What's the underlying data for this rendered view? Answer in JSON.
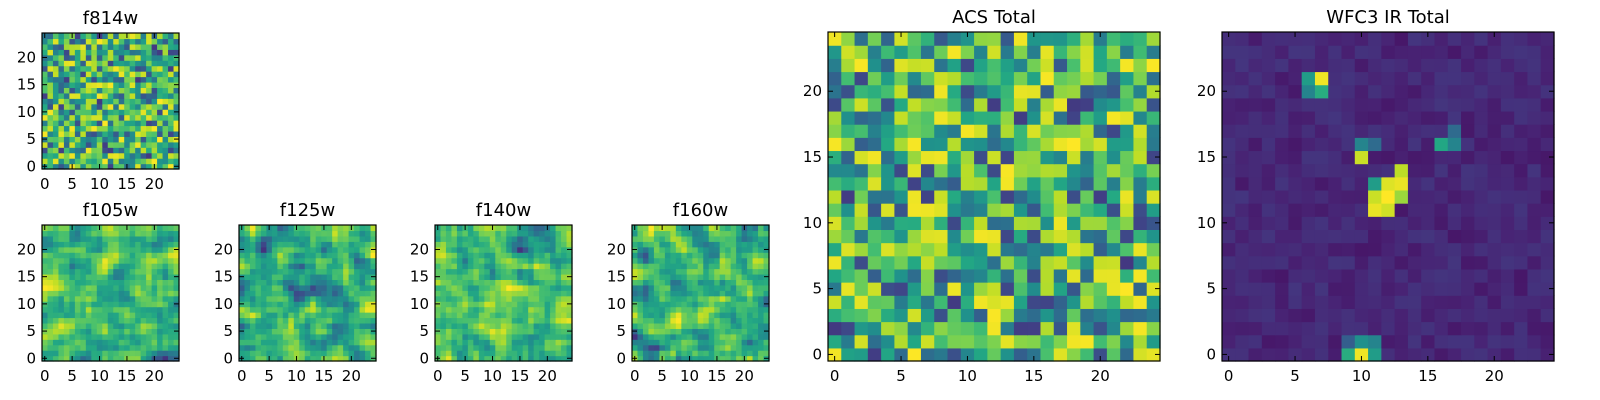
{
  "figure": {
    "background": "#ffffff",
    "colormap": "viridis"
  },
  "chart_data": [
    {
      "id": "f814w",
      "type": "heatmap",
      "title": "f814w",
      "xlabel": "",
      "ylabel": "",
      "grid_size": [
        25,
        25
      ],
      "xlim": [
        -0.5,
        24.5
      ],
      "ylim": [
        -0.5,
        24.5
      ],
      "xticks": [
        0,
        5,
        10,
        15,
        20
      ],
      "yticks": [
        0,
        5,
        10,
        15,
        20
      ],
      "value_range": [
        0,
        1
      ],
      "seed": 11,
      "smooth": 0,
      "peaks": [],
      "peak_background": 0,
      "note": "noise-like field; per-pixel values not legible"
    },
    {
      "id": "f105w",
      "type": "heatmap",
      "title": "f105w",
      "xlabel": "",
      "ylabel": "",
      "grid_size": [
        25,
        25
      ],
      "xlim": [
        -0.5,
        24.5
      ],
      "ylim": [
        -0.5,
        24.5
      ],
      "xticks": [
        0,
        5,
        10,
        15,
        20
      ],
      "yticks": [
        0,
        5,
        10,
        15,
        20
      ],
      "value_range": [
        0,
        1
      ],
      "seed": 23,
      "smooth": 1,
      "peaks": [],
      "peak_background": 0,
      "note": "smoothed noise field; per-pixel values not legible"
    },
    {
      "id": "f125w",
      "type": "heatmap",
      "title": "f125w",
      "xlabel": "",
      "ylabel": "",
      "grid_size": [
        25,
        25
      ],
      "xlim": [
        -0.5,
        24.5
      ],
      "ylim": [
        -0.5,
        24.5
      ],
      "xticks": [
        0,
        5,
        10,
        15,
        20
      ],
      "yticks": [
        0,
        5,
        10,
        15,
        20
      ],
      "value_range": [
        0,
        1
      ],
      "seed": 37,
      "smooth": 1,
      "peaks": [],
      "peak_background": 0,
      "note": "smoothed noise field; per-pixel values not legible"
    },
    {
      "id": "f140w",
      "type": "heatmap",
      "title": "f140w",
      "xlabel": "",
      "ylabel": "",
      "grid_size": [
        25,
        25
      ],
      "xlim": [
        -0.5,
        24.5
      ],
      "ylim": [
        -0.5,
        24.5
      ],
      "xticks": [
        0,
        5,
        10,
        15,
        20
      ],
      "yticks": [
        0,
        5,
        10,
        15,
        20
      ],
      "value_range": [
        0,
        1
      ],
      "seed": 41,
      "smooth": 1,
      "peaks": [],
      "peak_background": 0,
      "note": "smoothed noise field; per-pixel values not legible"
    },
    {
      "id": "f160w",
      "type": "heatmap",
      "title": "f160w",
      "xlabel": "",
      "ylabel": "",
      "grid_size": [
        25,
        25
      ],
      "xlim": [
        -0.5,
        24.5
      ],
      "ylim": [
        -0.5,
        24.5
      ],
      "xticks": [
        0,
        5,
        10,
        15,
        20
      ],
      "yticks": [
        0,
        5,
        10,
        15,
        20
      ],
      "value_range": [
        0,
        1
      ],
      "seed": 53,
      "smooth": 1,
      "peaks": [],
      "peak_background": 0,
      "note": "smoothed noise field; per-pixel values not legible"
    },
    {
      "id": "acs_total",
      "type": "heatmap",
      "title": "ACS Total",
      "xlabel": "",
      "ylabel": "",
      "grid_size": [
        25,
        25
      ],
      "xlim": [
        -0.5,
        24.5
      ],
      "ylim": [
        -0.5,
        24.5
      ],
      "xticks": [
        0,
        5,
        10,
        15,
        20
      ],
      "yticks": [
        0,
        5,
        10,
        15,
        20
      ],
      "value_range": [
        0,
        1
      ],
      "seed": 67,
      "smooth": 0,
      "peaks": [],
      "peak_background": 0,
      "note": "noise-like field; per-pixel values not legible"
    },
    {
      "id": "wfc3_ir_total",
      "type": "heatmap",
      "title": "WFC3 IR Total",
      "xlabel": "",
      "ylabel": "",
      "grid_size": [
        25,
        25
      ],
      "xlim": [
        -0.5,
        24.5
      ],
      "ylim": [
        -0.5,
        24.5
      ],
      "xticks": [
        0,
        5,
        10,
        15,
        20
      ],
      "yticks": [
        0,
        5,
        10,
        15,
        20
      ],
      "value_range": [
        0,
        1
      ],
      "seed": 79,
      "smooth": 0,
      "peak_background": 0.12,
      "peaks": [
        {
          "x": 7,
          "y": 21,
          "value": 0.98
        },
        {
          "x": 6,
          "y": 21,
          "value": 0.55
        },
        {
          "x": 6,
          "y": 20,
          "value": 0.45
        },
        {
          "x": 7,
          "y": 20,
          "value": 0.62
        },
        {
          "x": 12,
          "y": 13,
          "value": 0.95
        },
        {
          "x": 13,
          "y": 13,
          "value": 0.97
        },
        {
          "x": 13,
          "y": 14,
          "value": 0.9
        },
        {
          "x": 11,
          "y": 12,
          "value": 0.92
        },
        {
          "x": 12,
          "y": 12,
          "value": 1.0
        },
        {
          "x": 13,
          "y": 12,
          "value": 0.85
        },
        {
          "x": 11,
          "y": 13,
          "value": 0.55
        },
        {
          "x": 11,
          "y": 11,
          "value": 0.97
        },
        {
          "x": 12,
          "y": 11,
          "value": 0.93
        },
        {
          "x": 10,
          "y": 15,
          "value": 0.92
        },
        {
          "x": 10,
          "y": 16,
          "value": 0.45
        },
        {
          "x": 11,
          "y": 16,
          "value": 0.35
        },
        {
          "x": 16,
          "y": 16,
          "value": 0.6
        },
        {
          "x": 17,
          "y": 16,
          "value": 0.45
        },
        {
          "x": 17,
          "y": 17,
          "value": 0.35
        },
        {
          "x": 10,
          "y": 0,
          "value": 0.98
        },
        {
          "x": 9,
          "y": 0,
          "value": 0.62
        },
        {
          "x": 11,
          "y": 0,
          "value": 0.55
        },
        {
          "x": 10,
          "y": 1,
          "value": 0.5
        },
        {
          "x": 11,
          "y": 1,
          "value": 0.45
        },
        {
          "x": 9,
          "y": 1,
          "value": 0.3
        }
      ],
      "note": "mostly low background with a few bright sources"
    }
  ]
}
